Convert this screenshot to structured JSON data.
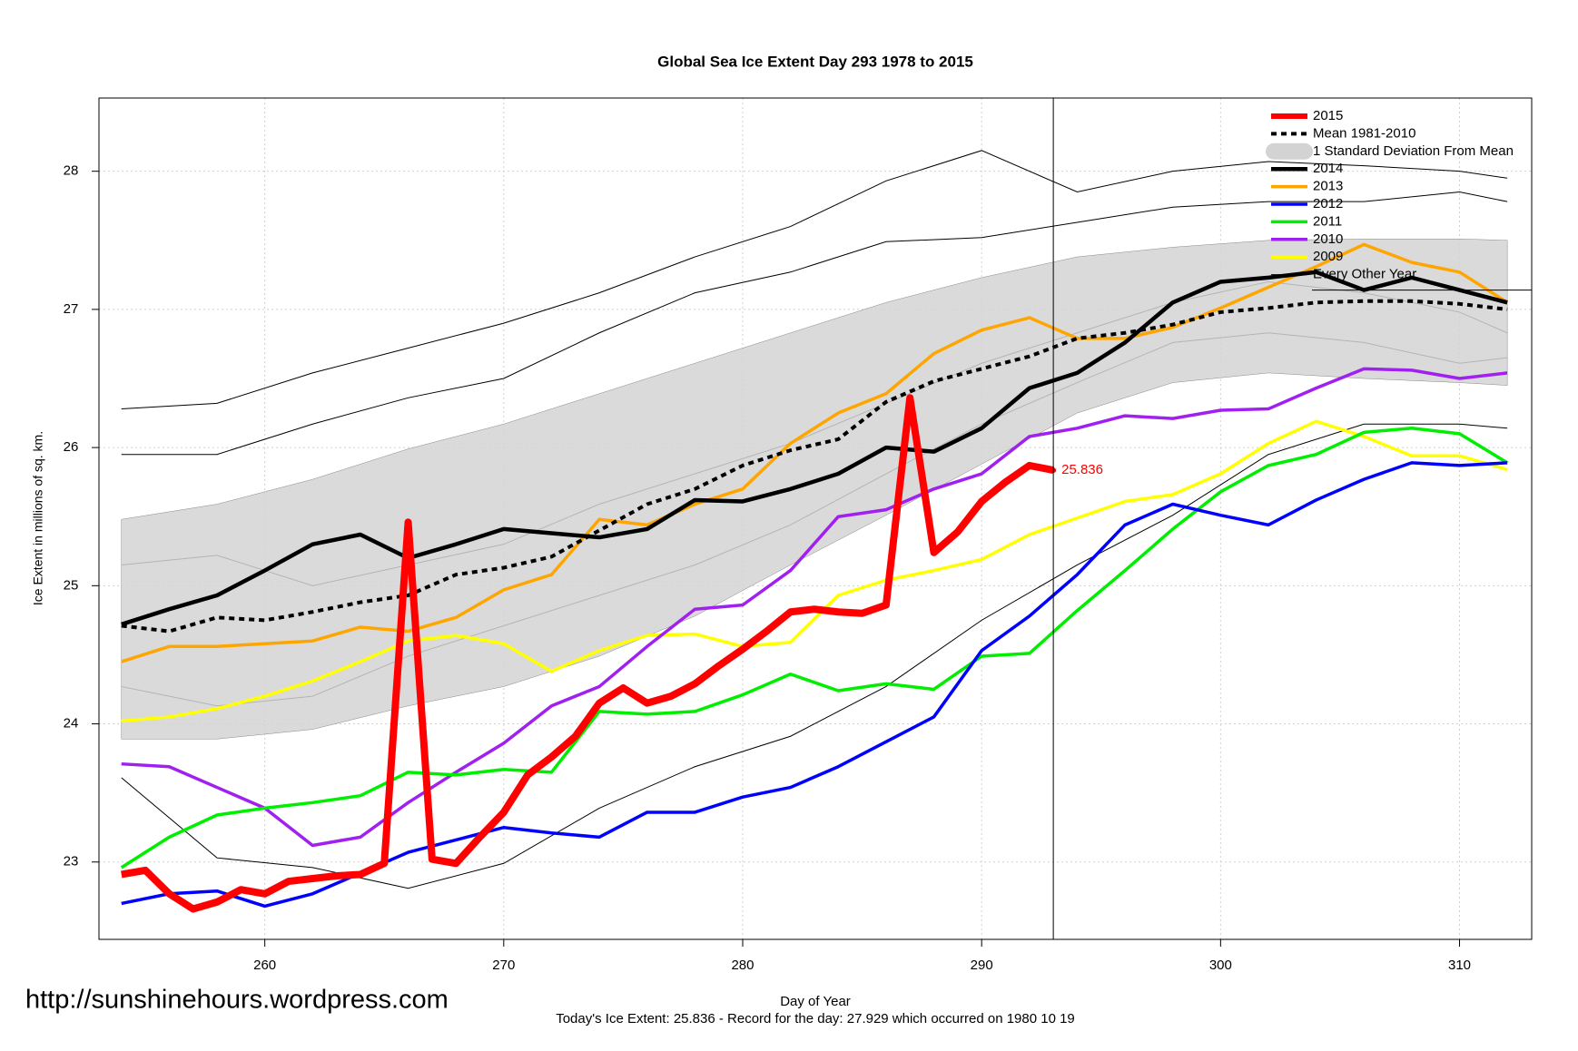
{
  "chart_data": {
    "type": "line",
    "title": "Global Sea Ice Extent Day 293 1978 to 2015",
    "x_label": "Day of Year",
    "y_label": "Ice Extent in millions of sq. km.",
    "footer": "Today's Ice Extent: 25.836  - Record for the day: 27.929 which occurred on 1980 10 19",
    "watermark": "http://sunshinehours.wordpress.com",
    "xlim": [
      253.06,
      313.02
    ],
    "ylim": [
      22.44,
      28.53
    ],
    "xticks": [
      260,
      270,
      280,
      290,
      300,
      310
    ],
    "yticks": [
      23,
      24,
      25,
      26,
      27,
      28
    ],
    "grid": true,
    "legend": "top-right",
    "vline": 293,
    "hline": 27.14,
    "series": [
      {
        "name": "2015",
        "color": "#ff0000",
        "width": 8,
        "x": [
          254,
          255,
          256,
          257,
          258,
          259,
          260,
          261,
          262,
          263,
          264,
          265,
          266,
          267,
          268,
          269,
          270,
          271,
          272,
          273,
          274,
          275,
          276,
          277,
          278,
          279,
          280,
          281,
          282,
          283,
          284,
          285,
          286,
          287,
          288,
          289,
          290,
          291,
          292,
          293
        ],
        "values": [
          22.91,
          22.94,
          22.77,
          22.66,
          22.71,
          22.8,
          22.77,
          22.86,
          22.88,
          22.9,
          22.91,
          22.99,
          25.46,
          23.02,
          22.99,
          23.18,
          23.36,
          23.63,
          23.76,
          23.91,
          24.15,
          24.26,
          24.15,
          24.2,
          24.29,
          24.42,
          24.54,
          24.67,
          24.81,
          24.83,
          24.81,
          24.8,
          24.86,
          26.36,
          25.24,
          25.39,
          25.61,
          25.75,
          25.87,
          25.836
        ]
      },
      {
        "name": "Mean 1981-2010",
        "color": "#000000",
        "width": 4,
        "dash": true,
        "x": [
          254,
          256,
          258,
          260,
          262,
          264,
          266,
          268,
          270,
          272,
          274,
          276,
          278,
          280,
          282,
          284,
          286,
          288,
          290,
          292,
          294,
          296,
          298,
          300,
          302,
          304,
          306,
          308,
          310,
          312
        ],
        "values": [
          24.71,
          24.67,
          24.77,
          24.75,
          24.81,
          24.88,
          24.93,
          25.08,
          25.13,
          25.21,
          25.4,
          25.59,
          25.7,
          25.87,
          25.98,
          26.06,
          26.33,
          26.48,
          26.57,
          26.66,
          26.79,
          26.83,
          26.89,
          26.98,
          27.01,
          27.05,
          27.06,
          27.06,
          27.04,
          27.0
        ]
      },
      {
        "name": "2014",
        "color": "#000000",
        "width": 4.5,
        "x": [
          254,
          256,
          258,
          260,
          262,
          264,
          266,
          268,
          270,
          272,
          274,
          276,
          278,
          280,
          282,
          284,
          286,
          288,
          290,
          292,
          294,
          296,
          298,
          300,
          302,
          304,
          306,
          308,
          310,
          312
        ],
        "values": [
          24.72,
          24.83,
          24.93,
          25.11,
          25.3,
          25.37,
          25.2,
          25.3,
          25.41,
          25.38,
          25.35,
          25.41,
          25.62,
          25.61,
          25.7,
          25.81,
          26.0,
          25.97,
          26.14,
          26.43,
          26.54,
          26.76,
          27.05,
          27.2,
          27.23,
          27.27,
          27.14,
          27.23,
          27.14,
          27.05
        ]
      },
      {
        "name": "2013",
        "color": "#ffa500",
        "width": 3.5,
        "x": [
          254,
          256,
          258,
          260,
          262,
          264,
          266,
          268,
          270,
          272,
          274,
          276,
          278,
          280,
          282,
          284,
          286,
          288,
          290,
          292,
          294,
          296,
          298,
          300,
          302,
          304,
          306,
          308,
          310,
          312
        ],
        "values": [
          24.45,
          24.56,
          24.56,
          24.58,
          24.6,
          24.7,
          24.67,
          24.77,
          24.97,
          25.08,
          25.48,
          25.44,
          25.59,
          25.7,
          26.03,
          26.25,
          26.39,
          26.68,
          26.85,
          26.94,
          26.79,
          26.79,
          26.87,
          27.01,
          27.16,
          27.31,
          27.47,
          27.34,
          27.27,
          27.05
        ]
      },
      {
        "name": "2012",
        "color": "#0000ff",
        "width": 3.5,
        "x": [
          254,
          256,
          258,
          260,
          262,
          264,
          266,
          268,
          270,
          272,
          274,
          276,
          278,
          280,
          282,
          284,
          286,
          288,
          290,
          292,
          294,
          296,
          298,
          300,
          302,
          304,
          306,
          308,
          310,
          312
        ],
        "values": [
          22.7,
          22.77,
          22.79,
          22.68,
          22.77,
          22.92,
          23.07,
          23.16,
          23.25,
          23.21,
          23.18,
          23.36,
          23.36,
          23.47,
          23.54,
          23.69,
          23.87,
          24.05,
          24.53,
          24.78,
          25.08,
          25.44,
          25.59,
          25.51,
          25.44,
          25.62,
          25.77,
          25.89,
          25.87,
          25.89
        ]
      },
      {
        "name": "2011",
        "color": "#00ee00",
        "width": 3.5,
        "x": [
          254,
          256,
          258,
          260,
          262,
          264,
          266,
          268,
          270,
          272,
          274,
          276,
          278,
          280,
          282,
          284,
          286,
          288,
          290,
          292,
          294,
          296,
          298,
          300,
          302,
          304,
          306,
          308,
          310,
          312
        ],
        "values": [
          22.96,
          23.18,
          23.34,
          23.39,
          23.43,
          23.48,
          23.65,
          23.63,
          23.67,
          23.65,
          24.09,
          24.07,
          24.09,
          24.21,
          24.36,
          24.24,
          24.29,
          24.25,
          24.49,
          24.51,
          24.82,
          25.11,
          25.41,
          25.68,
          25.87,
          25.95,
          26.11,
          26.14,
          26.1,
          25.89
        ]
      },
      {
        "name": "2010",
        "color": "#a020f0",
        "width": 3.5,
        "x": [
          254,
          256,
          258,
          260,
          262,
          264,
          266,
          268,
          270,
          272,
          274,
          276,
          278,
          280,
          282,
          284,
          286,
          288,
          290,
          292,
          294,
          296,
          298,
          300,
          302,
          304,
          306,
          308,
          310,
          312
        ],
        "values": [
          23.71,
          23.69,
          23.54,
          23.39,
          23.12,
          23.18,
          23.43,
          23.65,
          23.86,
          24.13,
          24.27,
          24.56,
          24.83,
          24.86,
          25.11,
          25.5,
          25.55,
          25.7,
          25.81,
          26.08,
          26.14,
          26.23,
          26.21,
          26.27,
          26.28,
          26.43,
          26.57,
          26.56,
          26.5,
          26.54
        ]
      },
      {
        "name": "2009",
        "color": "#ffff00",
        "width": 3.5,
        "x": [
          254,
          256,
          258,
          260,
          262,
          264,
          266,
          268,
          270,
          272,
          274,
          276,
          278,
          280,
          282,
          284,
          286,
          288,
          290,
          292,
          294,
          296,
          298,
          300,
          302,
          304,
          306,
          308,
          310,
          312
        ],
        "values": [
          24.02,
          24.05,
          24.11,
          24.2,
          24.31,
          24.45,
          24.6,
          24.64,
          24.58,
          24.38,
          24.53,
          24.64,
          24.65,
          24.56,
          24.59,
          24.93,
          25.04,
          25.11,
          25.19,
          25.37,
          25.49,
          25.61,
          25.66,
          25.81,
          26.03,
          26.19,
          26.08,
          25.94,
          25.94,
          25.84
        ]
      }
    ],
    "band": {
      "name": "1 Standard Deviation From Mean",
      "color": "#d3d3d3",
      "x": [
        254,
        258,
        262,
        266,
        270,
        274,
        278,
        282,
        286,
        290,
        294,
        298,
        302,
        306,
        310,
        312
      ],
      "upper": [
        25.48,
        25.59,
        25.77,
        25.99,
        26.17,
        26.39,
        26.61,
        26.83,
        27.05,
        27.23,
        27.38,
        27.45,
        27.5,
        27.51,
        27.51,
        27.5
      ],
      "lower": [
        23.89,
        23.89,
        23.96,
        24.13,
        24.27,
        24.49,
        24.78,
        25.15,
        25.51,
        25.88,
        26.25,
        26.47,
        26.54,
        26.5,
        26.47,
        26.45
      ]
    },
    "others": {
      "name": "Every Other Year",
      "color": "#000000",
      "x": [
        254,
        258,
        262,
        266,
        270,
        274,
        278,
        282,
        286,
        290,
        294,
        298,
        302,
        306,
        310,
        312
      ],
      "lines": [
        [
          26.28,
          26.32,
          26.54,
          26.72,
          26.9,
          27.12,
          27.38,
          27.6,
          27.93,
          28.15,
          27.85,
          28.0,
          28.07,
          28.04,
          28.0,
          27.95
        ],
        [
          25.95,
          25.95,
          26.17,
          26.36,
          26.5,
          26.83,
          27.12,
          27.27,
          27.49,
          27.52,
          27.63,
          27.74,
          27.78,
          27.78,
          27.85,
          27.78
        ],
        [
          23.61,
          23.03,
          22.96,
          22.81,
          22.99,
          23.39,
          23.69,
          23.91,
          24.27,
          24.75,
          25.15,
          25.51,
          25.95,
          26.17,
          26.17,
          26.14
        ],
        [
          25.15,
          25.22,
          25.0,
          25.15,
          25.3,
          25.59,
          25.81,
          26.03,
          26.32,
          26.61,
          26.83,
          27.05,
          27.2,
          27.12,
          26.98,
          26.83
        ],
        [
          24.27,
          24.13,
          24.2,
          24.49,
          24.71,
          24.93,
          25.15,
          25.44,
          25.81,
          26.17,
          26.47,
          26.76,
          26.83,
          26.76,
          26.61,
          26.65
        ]
      ]
    }
  }
}
